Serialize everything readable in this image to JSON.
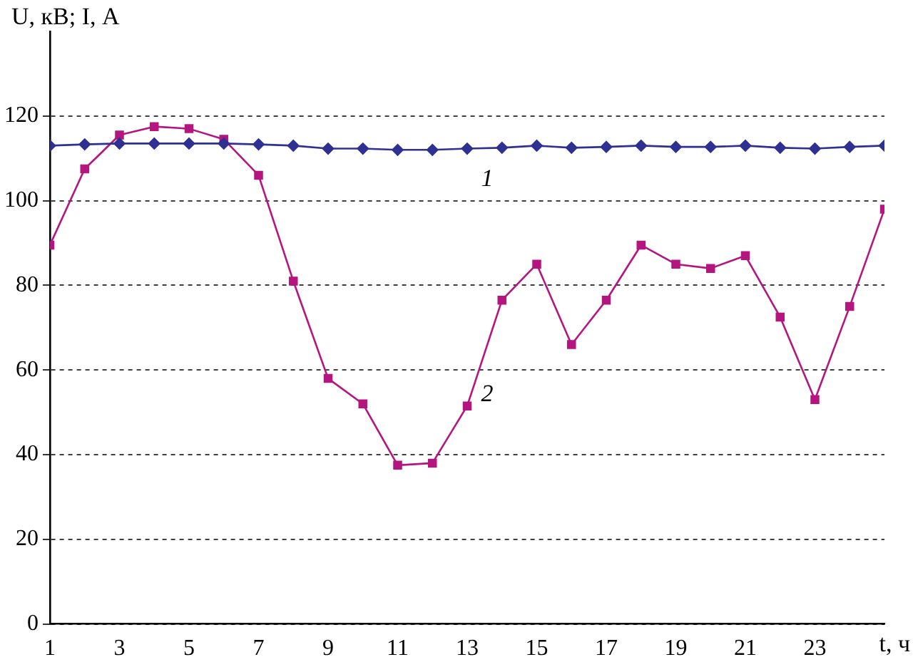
{
  "chart_data": {
    "type": "line",
    "xlabel": "t, ч",
    "ylabel": "U, кВ; I, А",
    "x": [
      1,
      2,
      3,
      4,
      5,
      6,
      7,
      8,
      9,
      10,
      11,
      12,
      13,
      14,
      15,
      16,
      17,
      18,
      19,
      20,
      21,
      22,
      23,
      24,
      25
    ],
    "series": [
      {
        "name": "1",
        "color": "#2e3192",
        "marker": "diamond",
        "values": [
          113,
          113.3,
          113.5,
          113.5,
          113.5,
          113.5,
          113.3,
          113,
          112.3,
          112.3,
          112,
          112,
          112.3,
          112.5,
          113,
          112.5,
          112.7,
          113,
          112.7,
          112.7,
          113,
          112.5,
          112.3,
          112.7,
          113
        ]
      },
      {
        "name": "2",
        "color": "#b5157e",
        "marker": "square",
        "values": [
          89.5,
          107.5,
          115.5,
          117.5,
          117,
          114.5,
          106,
          81,
          58,
          52,
          37.5,
          38,
          51.5,
          76.5,
          85,
          66,
          76.5,
          89.5,
          85,
          84,
          87,
          72.5,
          53,
          75,
          98
        ]
      }
    ],
    "xlim": [
      1,
      25
    ],
    "xticks": [
      1,
      3,
      5,
      7,
      9,
      11,
      13,
      15,
      17,
      19,
      21,
      23
    ],
    "ylim": [
      0,
      140
    ],
    "yticks": [
      0,
      20,
      40,
      60,
      80,
      100,
      120
    ],
    "grid": "y",
    "line_style": "solid",
    "legend": false
  }
}
